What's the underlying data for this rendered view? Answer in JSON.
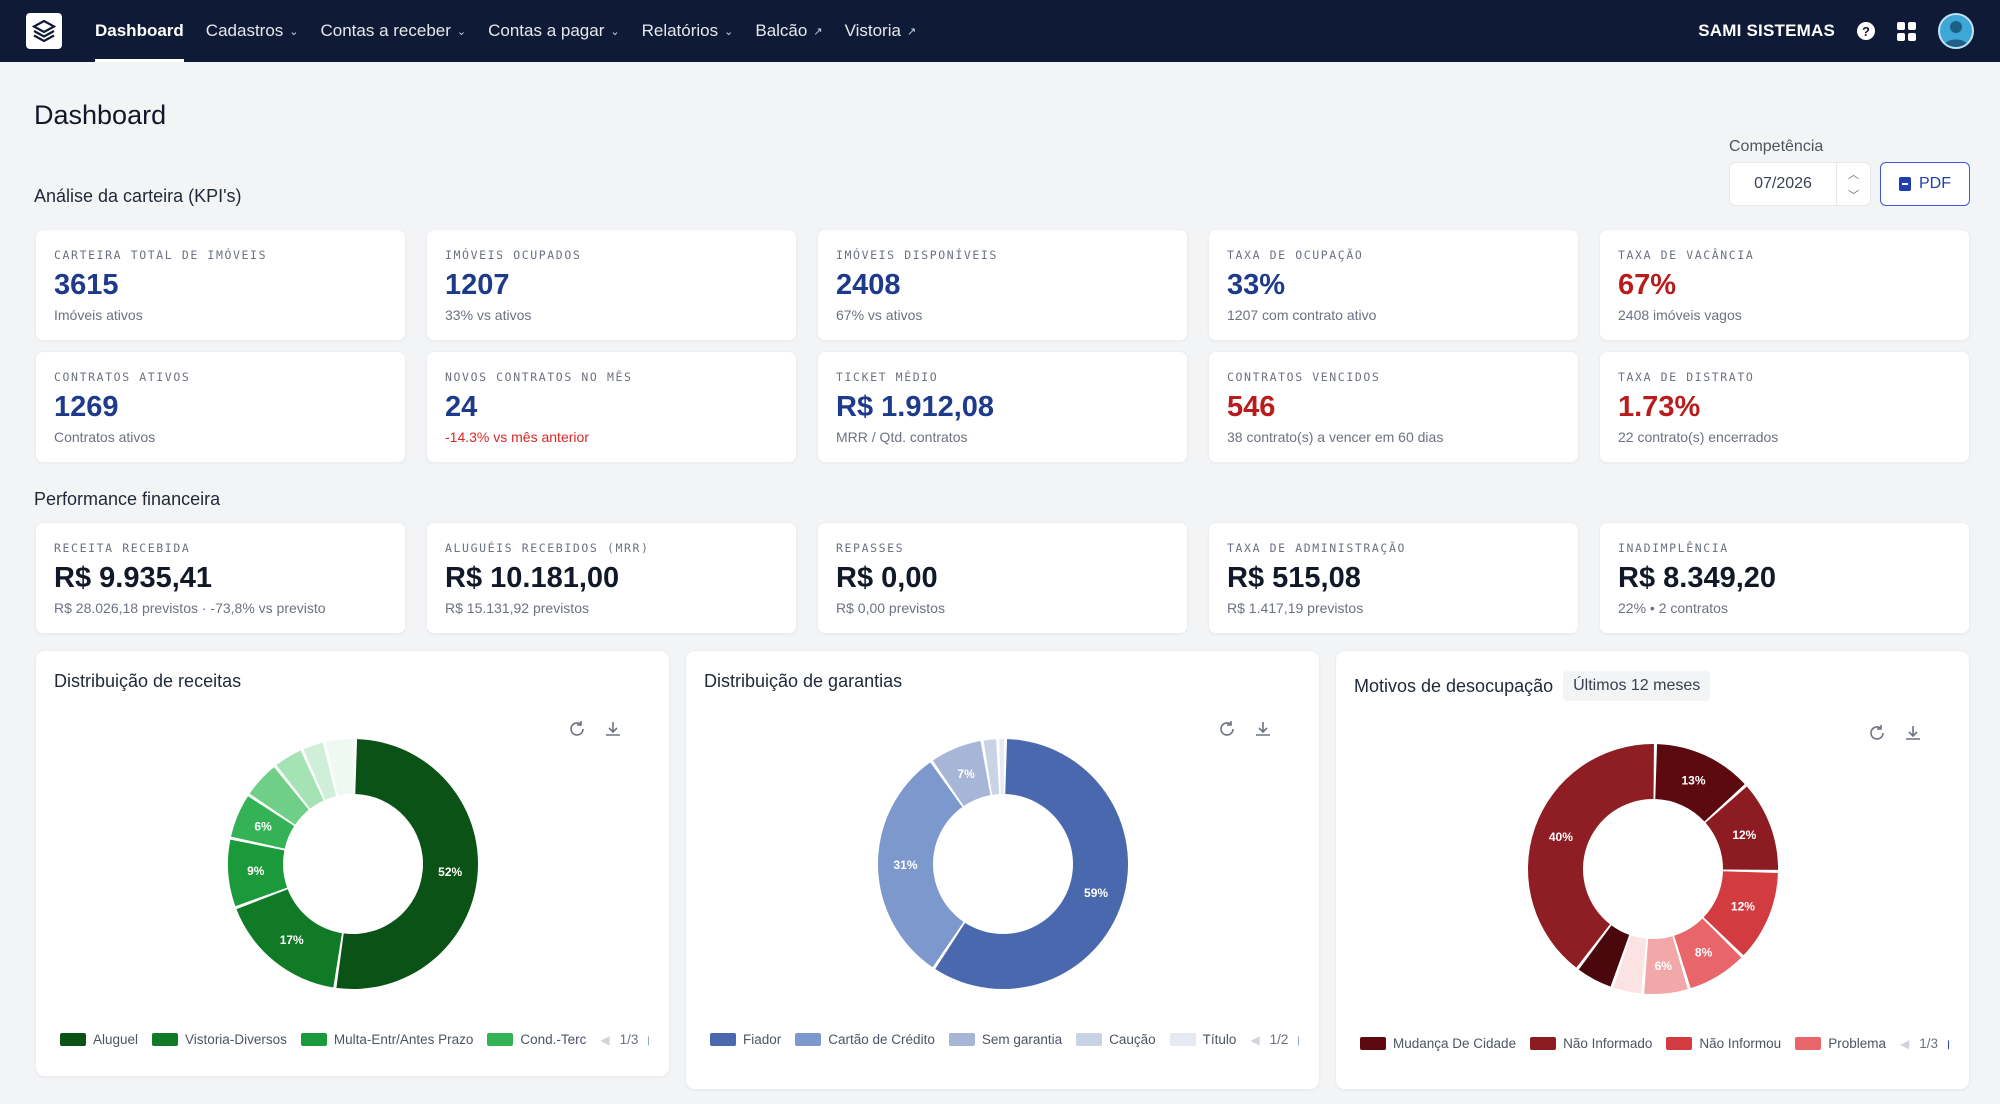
{
  "nav": {
    "items": [
      {
        "label": "Dashboard",
        "active": true,
        "kind": "plain"
      },
      {
        "label": "Cadastros",
        "kind": "dropdown"
      },
      {
        "label": "Contas a receber",
        "kind": "dropdown"
      },
      {
        "label": "Contas a pagar",
        "kind": "dropdown"
      },
      {
        "label": "Relatórios",
        "kind": "dropdown"
      },
      {
        "label": "Balcão",
        "kind": "external"
      },
      {
        "label": "Vistoria",
        "kind": "external"
      }
    ],
    "company": "SAMI SISTEMAS",
    "help": "?"
  },
  "page": {
    "title": "Dashboard",
    "kpi_section": "Análise da carteira (KPI's)",
    "finance_section": "Performance financeira",
    "competencia_label": "Competência",
    "competencia_value": "07/2026",
    "pdf_label": "PDF"
  },
  "kpis": [
    {
      "label": "Carteira total de imóveis",
      "value": "3615",
      "sub": "Imóveis ativos"
    },
    {
      "label": "Imóveis ocupados",
      "value": "1207",
      "sub": "33% vs ativos"
    },
    {
      "label": "Imóveis disponíveis",
      "value": "2408",
      "sub": "67% vs ativos"
    },
    {
      "label": "Taxa de ocupação",
      "value": "33%",
      "sub": "1207 com contrato ativo"
    },
    {
      "label": "Taxa de vacância",
      "value": "67%",
      "sub": "2408 imóveis vagos"
    },
    {
      "label": "Contratos ativos",
      "value": "1269",
      "sub": "Contratos ativos"
    },
    {
      "label": "Novos contratos no mês",
      "value": "24",
      "sub": "-14.3% vs mês anterior"
    },
    {
      "label": "Ticket médio",
      "value": "R$ 1.912,08",
      "sub": "MRR / Qtd. contratos"
    },
    {
      "label": "Contratos vencidos",
      "value": "546",
      "sub": "38 contrato(s) a vencer em 60 dias"
    },
    {
      "label": "Taxa de distrato",
      "value": "1.73%",
      "sub": "22 contrato(s) encerrados"
    }
  ],
  "finance": [
    {
      "label": "Receita recebida",
      "value": "R$ 9.935,41",
      "sub": "R$ 28.026,18 previstos · -73,8% vs previsto"
    },
    {
      "label": "Aluguéis recebidos (MRR)",
      "value": "R$ 10.181,00",
      "sub": "R$ 15.131,92 previstos"
    },
    {
      "label": "Repasses",
      "value": "R$ 0,00",
      "sub": "R$ 0,00 previstos"
    },
    {
      "label": "Taxa de administração",
      "value": "R$ 515,08",
      "sub": "R$ 1.417,19 previstos"
    },
    {
      "label": "Inadimplência",
      "value": "R$ 8.349,20",
      "sub": "22% • 2 contratos"
    }
  ],
  "colors": {
    "kpi_blue": "#1e3a8a",
    "kpi_red": "#b91c1c",
    "nav_bg": "#0f1b36"
  },
  "chart_data": [
    {
      "type": "pie",
      "title": "Distribuição de receitas",
      "legend": [
        "Aluguel",
        "Vistoria-Diversos",
        "Multa-Entr/Antes Prazo",
        "Cond.-Terc"
      ],
      "pager": "1/3",
      "slices": [
        {
          "value": 52,
          "label": "52%",
          "color": "#0b5216"
        },
        {
          "value": 17,
          "label": "17%",
          "color": "#107a27"
        },
        {
          "value": 9,
          "label": "9%",
          "color": "#1a9a3a"
        },
        {
          "value": 6,
          "label": "6%",
          "color": "#33b356"
        },
        {
          "value": 5,
          "label": "",
          "color": "#6fcf86"
        },
        {
          "value": 4,
          "label": "",
          "color": "#a6e3b4"
        },
        {
          "value": 3,
          "label": "",
          "color": "#d0efd8"
        },
        {
          "value": 4,
          "label": "",
          "color": "#eefaf1"
        }
      ]
    },
    {
      "type": "pie",
      "title": "Distribuição de garantias",
      "legend": [
        "Fiador",
        "Cartão de Crédito",
        "Sem garantia",
        "Caução",
        "Título"
      ],
      "pager": "1/2",
      "slices": [
        {
          "value": 59,
          "label": "59%",
          "color": "#4a68ad"
        },
        {
          "value": 31,
          "label": "31%",
          "color": "#7d98cc"
        },
        {
          "value": 7,
          "label": "7%",
          "color": "#a7b6d6"
        },
        {
          "value": 2,
          "label": "",
          "color": "#c9d3e6"
        },
        {
          "value": 1,
          "label": "",
          "color": "#e4e9f2"
        }
      ]
    },
    {
      "type": "pie",
      "title": "Motivos de desocupação",
      "badge": "Últimos 12 meses",
      "legend": [
        "Mudança De Cidade",
        "Não Informado",
        "Não Informou",
        "Problema"
      ],
      "pager": "1/3",
      "slices": [
        {
          "value": 13,
          "label": "13%",
          "color": "#5c0a10"
        },
        {
          "value": 12,
          "label": "12%",
          "color": "#8c1b22"
        },
        {
          "value": 12,
          "label": "12%",
          "color": "#d23b3f"
        },
        {
          "value": 8,
          "label": "8%",
          "color": "#e8666a"
        },
        {
          "value": 6,
          "label": "6%",
          "color": "#f2a7a9"
        },
        {
          "value": 4,
          "label": "",
          "color": "#fbe3e4"
        },
        {
          "value": 5,
          "label": "",
          "color": "#4a070c"
        },
        {
          "value": 40,
          "label": "40%",
          "color": "#8e1d24"
        }
      ]
    }
  ]
}
